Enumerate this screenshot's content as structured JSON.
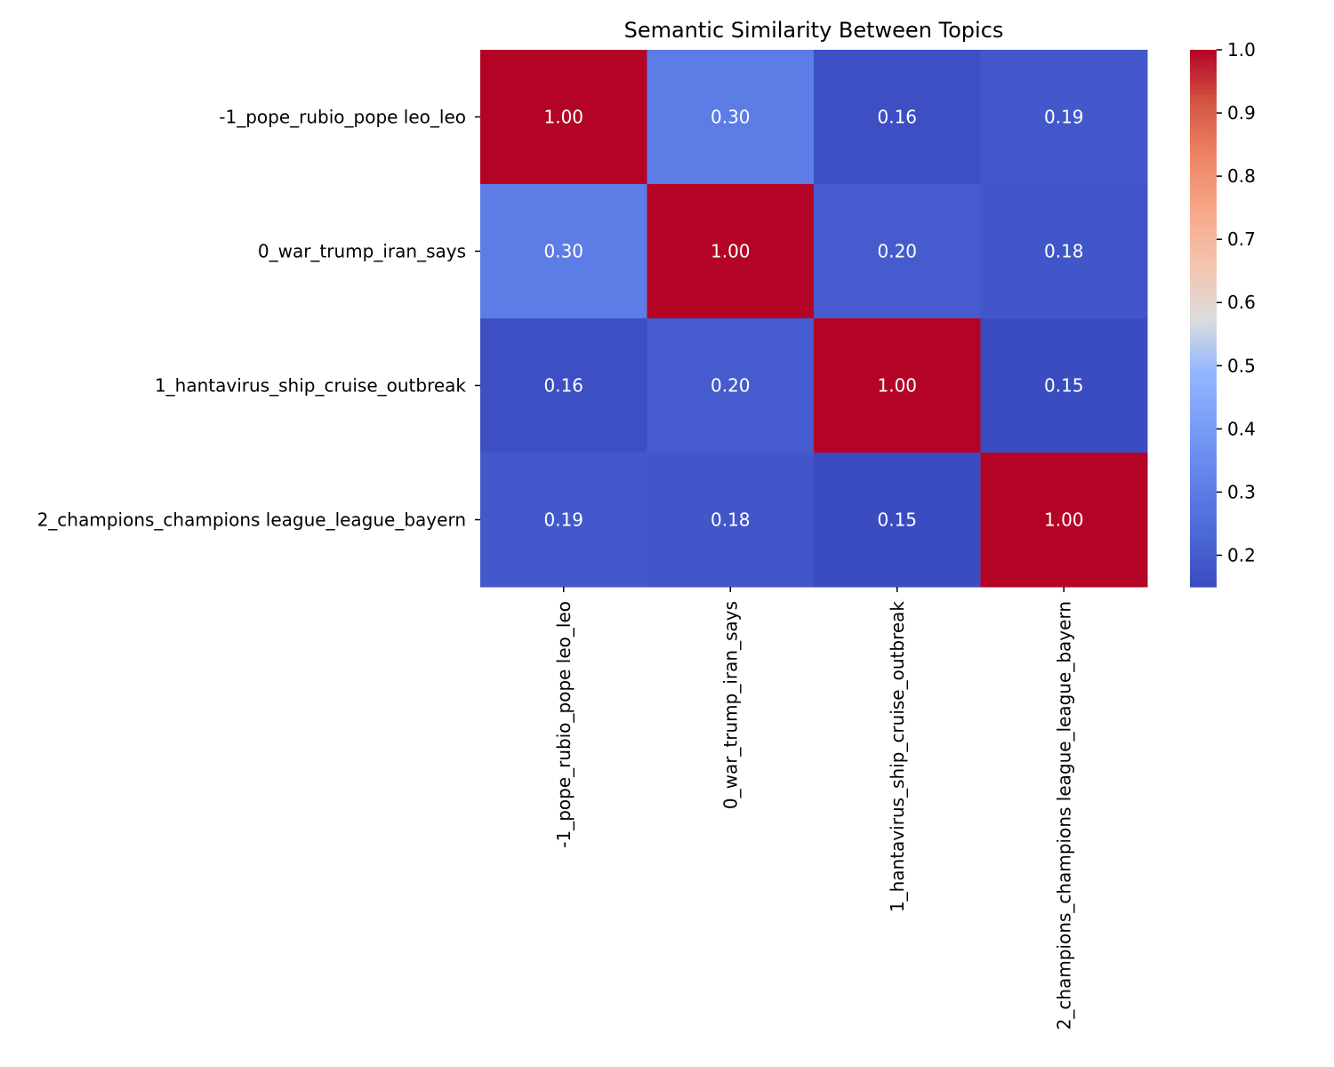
{
  "chart_data": {
    "type": "heatmap",
    "title": "Semantic Similarity Between Topics",
    "rows": [
      "-1_pope_rubio_pope leo_leo",
      "0_war_trump_iran_says",
      "1_hantavirus_ship_cruise_outbreak",
      "2_champions_champions league_league_bayern"
    ],
    "columns": [
      "-1_pope_rubio_pope leo_leo",
      "0_war_trump_iran_says",
      "1_hantavirus_ship_cruise_outbreak",
      "2_champions_champions league_league_bayern"
    ],
    "values": [
      [
        1.0,
        0.3,
        0.16,
        0.19
      ],
      [
        0.3,
        1.0,
        0.2,
        0.18
      ],
      [
        0.16,
        0.2,
        1.0,
        0.15
      ],
      [
        0.19,
        0.18,
        0.15,
        1.0
      ]
    ],
    "cell_labels": [
      [
        "1.00",
        "0.30",
        "0.16",
        "0.19"
      ],
      [
        "0.30",
        "1.00",
        "0.20",
        "0.18"
      ],
      [
        "0.16",
        "0.20",
        "1.00",
        "0.15"
      ],
      [
        "0.19",
        "0.18",
        "0.15",
        "1.00"
      ]
    ],
    "colormap": "coolwarm",
    "colorbar": {
      "vmin": 0.15,
      "vmax": 1.0,
      "ticks": [
        0.2,
        0.3,
        0.4,
        0.5,
        0.6,
        0.7,
        0.8,
        0.9,
        1.0
      ],
      "tick_labels": [
        "0.2",
        "0.3",
        "0.4",
        "0.5",
        "0.6",
        "0.7",
        "0.8",
        "0.9",
        "1.0"
      ]
    },
    "colors": {
      "low": "#3b4cc0",
      "mid": "#dddddd",
      "high": "#b40426"
    }
  }
}
